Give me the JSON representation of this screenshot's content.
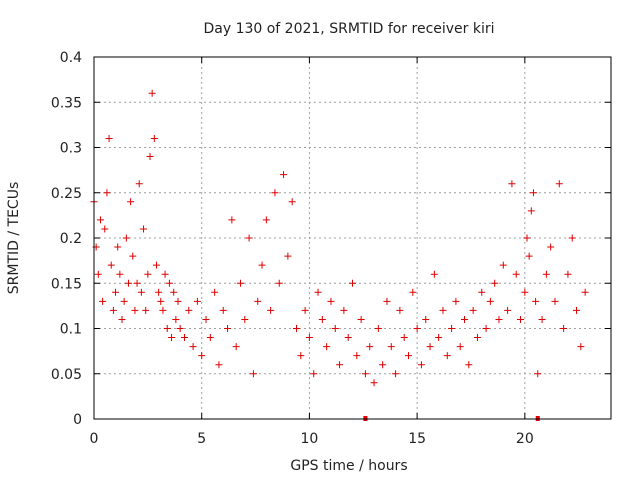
{
  "chart_data": {
    "type": "scatter",
    "title": "Day 130 of 2021, SRMTID for receiver kiri",
    "xlabel": "GPS time / hours",
    "ylabel": "SRMTID / TECUs",
    "xlim": [
      0,
      24
    ],
    "ylim": [
      0,
      0.4
    ],
    "grid": true,
    "legend": "none",
    "color": "#e00000",
    "x_ticks": [
      0,
      5,
      10,
      15,
      20
    ],
    "x_tick_labels": [
      "0",
      "5",
      "10",
      "15",
      "20"
    ],
    "y_ticks": [
      0,
      0.05,
      0.1,
      0.15,
      0.2,
      0.25,
      0.3,
      0.35,
      0.4
    ],
    "y_tick_labels": [
      "0",
      "0.05",
      "0.1",
      "0.15",
      "0.2",
      "0.25",
      "0.3",
      "0.35",
      "0.4"
    ],
    "markers_at_zero": [
      12.6,
      20.6
    ],
    "series": [
      {
        "name": "SRMTID",
        "x": [
          0.0,
          0.1,
          0.2,
          0.3,
          0.4,
          0.5,
          0.6,
          0.7,
          0.8,
          0.9,
          1.0,
          1.1,
          1.2,
          1.3,
          1.4,
          1.5,
          1.6,
          1.7,
          1.8,
          1.9,
          2.0,
          2.1,
          2.2,
          2.3,
          2.4,
          2.5,
          2.6,
          2.7,
          2.8,
          2.9,
          3.0,
          3.1,
          3.2,
          3.3,
          3.4,
          3.5,
          3.6,
          3.7,
          3.8,
          3.9,
          4.0,
          4.2,
          4.4,
          4.6,
          4.8,
          5.0,
          5.2,
          5.4,
          5.6,
          5.8,
          6.0,
          6.2,
          6.4,
          6.6,
          6.8,
          7.0,
          7.2,
          7.4,
          7.6,
          7.8,
          8.0,
          8.2,
          8.4,
          8.6,
          8.8,
          9.0,
          9.2,
          9.4,
          9.6,
          9.8,
          10.0,
          10.2,
          10.4,
          10.6,
          10.8,
          11.0,
          11.2,
          11.4,
          11.6,
          11.8,
          12.0,
          12.2,
          12.4,
          12.6,
          12.8,
          13.0,
          13.2,
          13.4,
          13.6,
          13.8,
          14.0,
          14.2,
          14.4,
          14.6,
          14.8,
          15.0,
          15.2,
          15.4,
          15.6,
          15.8,
          16.0,
          16.2,
          16.4,
          16.6,
          16.8,
          17.0,
          17.2,
          17.4,
          17.6,
          17.8,
          18.0,
          18.2,
          18.4,
          18.6,
          18.8,
          19.0,
          19.2,
          19.4,
          19.6,
          19.8,
          20.0,
          20.1,
          20.2,
          20.3,
          20.4,
          20.5,
          20.6,
          20.8,
          21.0,
          21.2,
          21.4,
          21.6,
          21.8,
          22.0,
          22.2,
          22.4,
          22.6,
          22.8
        ],
        "y": [
          0.24,
          0.19,
          0.16,
          0.22,
          0.13,
          0.21,
          0.25,
          0.31,
          0.17,
          0.12,
          0.14,
          0.19,
          0.16,
          0.11,
          0.13,
          0.2,
          0.15,
          0.24,
          0.18,
          0.12,
          0.15,
          0.26,
          0.14,
          0.21,
          0.12,
          0.16,
          0.29,
          0.36,
          0.31,
          0.17,
          0.14,
          0.13,
          0.12,
          0.16,
          0.1,
          0.15,
          0.09,
          0.14,
          0.11,
          0.13,
          0.1,
          0.09,
          0.12,
          0.08,
          0.13,
          0.07,
          0.11,
          0.09,
          0.14,
          0.06,
          0.12,
          0.1,
          0.22,
          0.08,
          0.15,
          0.11,
          0.2,
          0.05,
          0.13,
          0.17,
          0.22,
          0.12,
          0.25,
          0.15,
          0.27,
          0.18,
          0.24,
          0.1,
          0.07,
          0.12,
          0.09,
          0.05,
          0.14,
          0.11,
          0.08,
          0.13,
          0.1,
          0.06,
          0.12,
          0.09,
          0.15,
          0.07,
          0.11,
          0.05,
          0.08,
          0.04,
          0.1,
          0.06,
          0.13,
          0.08,
          0.05,
          0.12,
          0.09,
          0.07,
          0.14,
          0.1,
          0.06,
          0.11,
          0.08,
          0.16,
          0.09,
          0.12,
          0.07,
          0.1,
          0.13,
          0.08,
          0.11,
          0.06,
          0.12,
          0.09,
          0.14,
          0.1,
          0.13,
          0.15,
          0.11,
          0.17,
          0.12,
          0.26,
          0.16,
          0.11,
          0.14,
          0.2,
          0.18,
          0.23,
          0.25,
          0.13,
          0.05,
          0.11,
          0.16,
          0.19,
          0.13,
          0.26,
          0.1,
          0.16,
          0.2,
          0.12,
          0.08,
          0.14
        ]
      }
    ]
  }
}
